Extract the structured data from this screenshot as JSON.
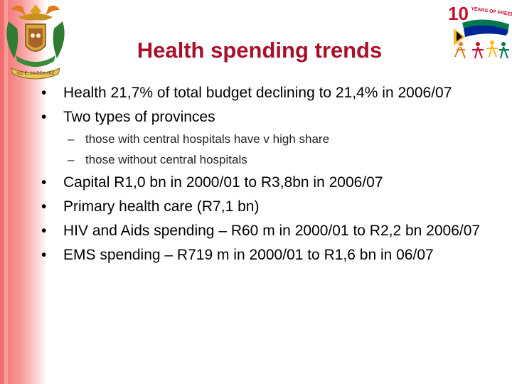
{
  "title": "Health spending trends",
  "logos": {
    "coat_of_arms_motto": "!KE E: /XARRA //KE",
    "anniversary_logo_text": "YEARS OF FREEDOM",
    "anniversary_number": "10",
    "colors": {
      "red": "#c8102e",
      "green": "#007a4d",
      "yellow": "#ffb81c",
      "blue": "#002395"
    }
  },
  "bullets": [
    {
      "level": 1,
      "marker": "•",
      "text": "Health 21,7% of total budget declining to 21,4% in 2006/07"
    },
    {
      "level": 1,
      "marker": "•",
      "text": "Two types of provinces"
    },
    {
      "level": 2,
      "marker": "–",
      "text": "those with central hospitals have v high share"
    },
    {
      "level": 2,
      "marker": "–",
      "text": "those without central hospitals"
    },
    {
      "level": 1,
      "marker": "•",
      "text": "Capital R1,0 bn in 2000/01 to R3,8bn in 2006/07"
    },
    {
      "level": 1,
      "marker": "•",
      "text": "Primary health care (R7,1 bn)"
    },
    {
      "level": 1,
      "marker": "•",
      "text": "HIV and Aids spending – R60 m in 2000/01 to R2,2 bn 2006/07"
    },
    {
      "level": 1,
      "marker": "•",
      "text": "EMS spending – R719 m in 2000/01 to R1,6 bn in 06/07"
    }
  ]
}
